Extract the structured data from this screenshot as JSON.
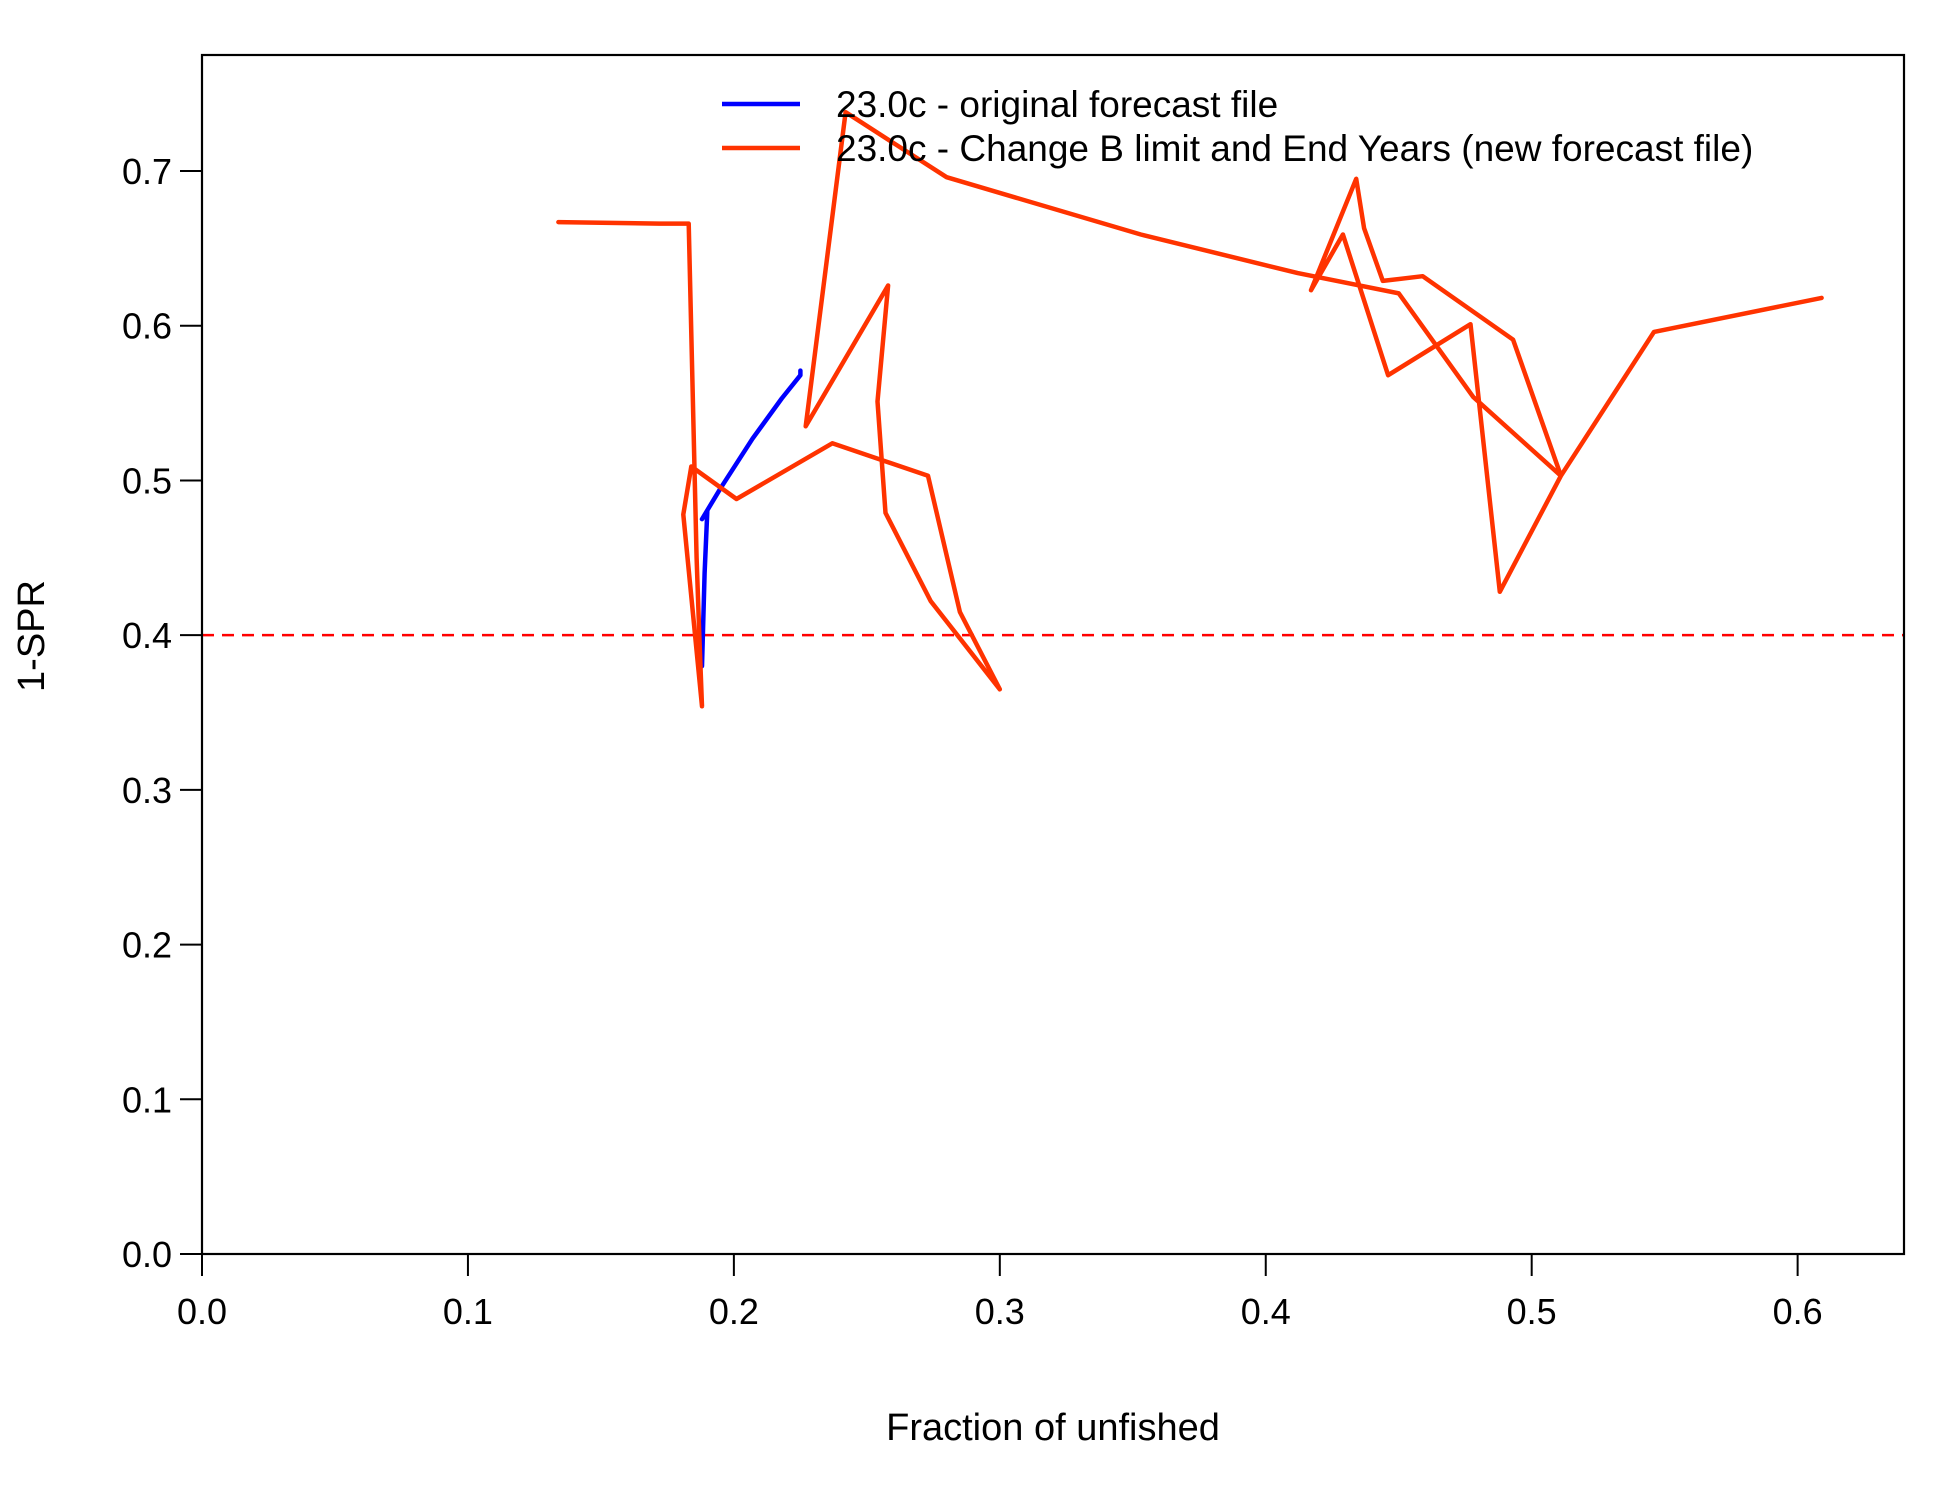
{
  "chart_data": {
    "type": "line",
    "title": "",
    "xlabel": "Fraction of unfished",
    "ylabel": "1-SPR",
    "xlim": [
      0.0,
      0.64
    ],
    "ylim": [
      0.0,
      0.775
    ],
    "x_ticks": [
      "0.0",
      "0.1",
      "0.2",
      "0.3",
      "0.4",
      "0.5",
      "0.6"
    ],
    "y_ticks": [
      "0.0",
      "0.1",
      "0.2",
      "0.3",
      "0.4",
      "0.5",
      "0.6",
      "0.7"
    ],
    "grid": false,
    "legend_position": "top-right",
    "reference_line": {
      "y": 0.4,
      "style": "dashed",
      "color": "#ff0000"
    },
    "series": [
      {
        "name": "23.0c - original forecast file",
        "color": "#0000ff",
        "points": [
          [
            0.188,
            0.38
          ],
          [
            0.189,
            0.44
          ],
          [
            0.19,
            0.48
          ],
          [
            0.188,
            0.475
          ],
          [
            0.195,
            0.495
          ],
          [
            0.207,
            0.527
          ],
          [
            0.218,
            0.553
          ],
          [
            0.225,
            0.568
          ],
          [
            0.225,
            0.571
          ]
        ]
      },
      {
        "name": "23.0c - Change B limit and End Years (new forecast file)",
        "color": "#ff3300",
        "points": [
          [
            0.134,
            0.667
          ],
          [
            0.172,
            0.666
          ],
          [
            0.183,
            0.666
          ],
          [
            0.186,
            0.45
          ],
          [
            0.187,
            0.4
          ],
          [
            0.188,
            0.354
          ],
          [
            0.181,
            0.478
          ],
          [
            0.184,
            0.509
          ],
          [
            0.201,
            0.488
          ],
          [
            0.237,
            0.524
          ],
          [
            0.273,
            0.503
          ],
          [
            0.285,
            0.415
          ],
          [
            0.3,
            0.365
          ],
          [
            0.274,
            0.422
          ],
          [
            0.257,
            0.479
          ],
          [
            0.254,
            0.551
          ],
          [
            0.258,
            0.626
          ],
          [
            0.227,
            0.535
          ],
          [
            0.242,
            0.738
          ],
          [
            0.28,
            0.696
          ],
          [
            0.353,
            0.659
          ],
          [
            0.412,
            0.634
          ],
          [
            0.45,
            0.621
          ],
          [
            0.478,
            0.554
          ],
          [
            0.511,
            0.503
          ],
          [
            0.493,
            0.591
          ],
          [
            0.459,
            0.632
          ],
          [
            0.444,
            0.629
          ],
          [
            0.437,
            0.663
          ],
          [
            0.434,
            0.695
          ],
          [
            0.417,
            0.623
          ],
          [
            0.429,
            0.659
          ],
          [
            0.446,
            0.568
          ],
          [
            0.477,
            0.601
          ],
          [
            0.488,
            0.428
          ],
          [
            0.511,
            0.503
          ],
          [
            0.546,
            0.596
          ],
          [
            0.609,
            0.618
          ]
        ]
      }
    ]
  }
}
